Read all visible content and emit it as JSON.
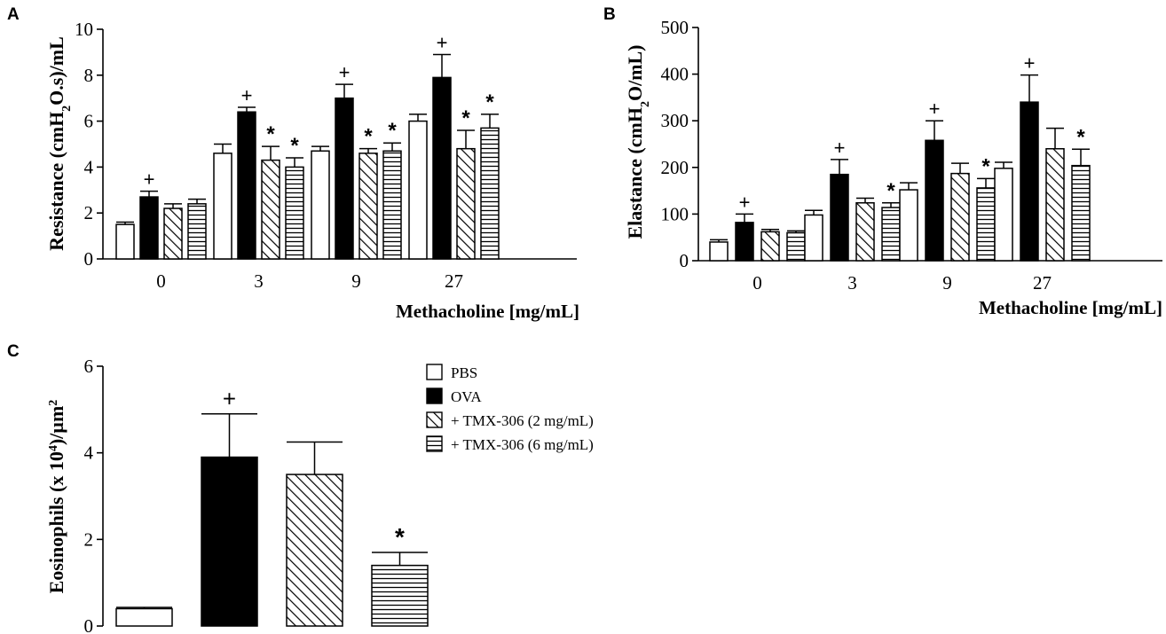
{
  "chart_data": [
    {
      "panel": "A",
      "type": "bar",
      "ylabel_parts": [
        "Resistance (cmH",
        "2",
        "O.s)/mL"
      ],
      "xlabel": "Methacholine [mg/mL]",
      "ylim": [
        0,
        10
      ],
      "yticks": [
        "0",
        "2",
        "4",
        "6",
        "8",
        "10"
      ],
      "categories": [
        "0",
        "3",
        "9",
        "27"
      ],
      "series": [
        {
          "name": "PBS",
          "values": [
            1.5,
            4.6,
            4.7,
            6.0
          ],
          "errors": [
            0.1,
            0.4,
            0.2,
            0.3
          ],
          "marks": [
            "",
            "",
            "",
            ""
          ]
        },
        {
          "name": "OVA",
          "values": [
            2.7,
            6.4,
            7.0,
            7.9
          ],
          "errors": [
            0.25,
            0.2,
            0.6,
            1.0
          ],
          "marks": [
            "+",
            "+",
            "+",
            "+"
          ]
        },
        {
          "name": "+ TMX-306 (2 mg/mL)",
          "values": [
            2.2,
            4.3,
            4.6,
            4.8
          ],
          "errors": [
            0.2,
            0.6,
            0.2,
            0.8
          ],
          "marks": [
            "",
            "*",
            "*",
            "*"
          ]
        },
        {
          "name": "+ TMX-306 (6 mg/mL)",
          "values": [
            2.4,
            4.0,
            4.7,
            5.7
          ],
          "errors": [
            0.2,
            0.4,
            0.35,
            0.6
          ],
          "marks": [
            "",
            "*",
            "*",
            "*"
          ]
        }
      ]
    },
    {
      "panel": "B",
      "type": "bar",
      "ylabel_parts": [
        "Elastance (cmH",
        "2",
        "O/mL)"
      ],
      "xlabel": "Methacholine [mg/mL]",
      "ylim": [
        0,
        500
      ],
      "yticks": [
        "0",
        "100",
        "200",
        "300",
        "400",
        "500"
      ],
      "categories": [
        "0",
        "3",
        "9",
        "27"
      ],
      "series": [
        {
          "name": "PBS",
          "values": [
            40,
            98,
            152,
            198
          ],
          "errors": [
            5,
            10,
            15,
            13
          ],
          "marks": [
            "",
            "",
            "",
            ""
          ]
        },
        {
          "name": "OVA",
          "values": [
            82,
            185,
            258,
            340
          ],
          "errors": [
            18,
            32,
            42,
            58
          ],
          "marks": [
            "+",
            "+",
            "+",
            "+"
          ]
        },
        {
          "name": "+ TMX-306 (2 mg/mL)",
          "values": [
            62,
            124,
            187,
            240
          ],
          "errors": [
            5,
            10,
            22,
            44
          ],
          "marks": [
            "",
            "",
            "",
            ""
          ]
        },
        {
          "name": "+ TMX-306 (6 mg/mL)",
          "values": [
            60,
            114,
            156,
            204
          ],
          "errors": [
            4,
            10,
            20,
            35
          ],
          "marks": [
            "",
            "*",
            "*",
            "*"
          ]
        }
      ]
    },
    {
      "panel": "C",
      "type": "bar",
      "ylabel_parts": [
        "Eosinophils (x 10",
        "4",
        ")/µm",
        "2"
      ],
      "ylim": [
        0,
        6
      ],
      "yticks": [
        "0",
        "2",
        "4",
        "6"
      ],
      "categories": [
        "PBS",
        "OVA",
        "+ TMX-306 (2 mg/mL)",
        "+ TMX-306 (6 mg/mL)"
      ],
      "values": [
        0.4,
        3.9,
        3.5,
        1.4
      ],
      "errors": [
        0.03,
        1.0,
        0.75,
        0.3
      ],
      "marks": [
        "",
        "+",
        "",
        "*"
      ]
    }
  ],
  "legend": [
    "PBS",
    "OVA",
    "+ TMX-306 (2 mg/mL)",
    "+ TMX-306 (6 mg/mL)"
  ],
  "colors": {
    "ink": "#000000",
    "paper": "#ffffff"
  },
  "fills": [
    "open",
    "solid",
    "diagonal-hatch",
    "horizontal-hatch"
  ]
}
